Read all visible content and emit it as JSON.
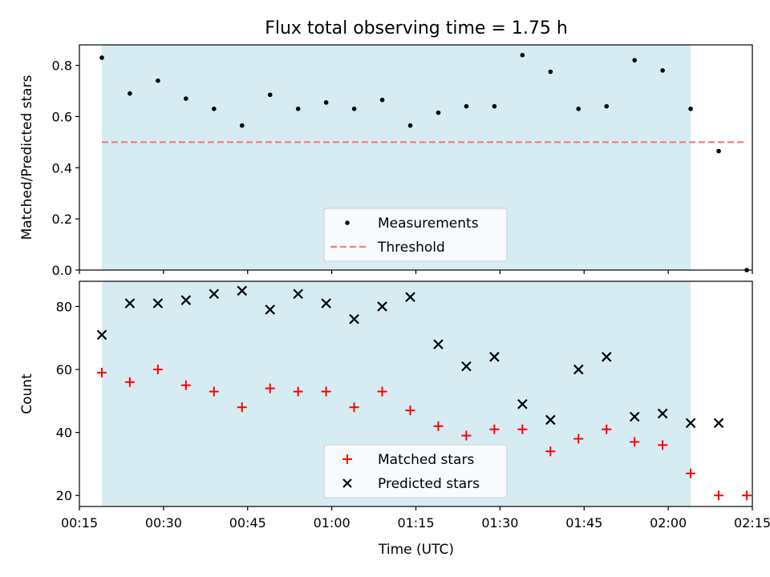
{
  "figure": {
    "title": "Flux total observing time = 1.75 h",
    "xlabel": "Time (UTC)"
  },
  "colors": {
    "shade": "#add8e6",
    "measurement": "#000000",
    "threshold": "#f08080",
    "matched": "#ff0000",
    "predicted": "#000000"
  },
  "chart_data": [
    {
      "type": "scatter",
      "ylabel": "Matched/Predicted stars",
      "ylim": [
        0,
        0.88
      ],
      "yticks": [
        "0.0",
        "0.2",
        "0.4",
        "0.6",
        "0.8"
      ],
      "xlim_minutes": [
        15,
        135
      ],
      "shaded_interval": [
        "00:19",
        "02:04"
      ],
      "x": [
        "00:19",
        "00:24",
        "00:29",
        "00:34",
        "00:39",
        "00:44",
        "00:49",
        "00:54",
        "00:59",
        "01:04",
        "01:09",
        "01:14",
        "01:19",
        "01:24",
        "01:29",
        "01:34",
        "01:39",
        "01:44",
        "01:49",
        "01:54",
        "01:59",
        "02:04",
        "02:09",
        "02:14"
      ],
      "series": [
        {
          "name": "Measurements",
          "marker": "dot",
          "values": [
            0.83,
            0.69,
            0.74,
            0.67,
            0.63,
            0.565,
            0.685,
            0.63,
            0.655,
            0.63,
            0.665,
            0.565,
            0.615,
            0.64,
            0.64,
            0.84,
            0.775,
            0.63,
            0.64,
            0.82,
            0.78,
            0.63,
            0.465,
            0.0
          ]
        },
        {
          "name": "Threshold",
          "marker": "dashed-line",
          "value": 0.5,
          "from": "00:19",
          "to": "02:14"
        }
      ],
      "legend": {
        "position": "lower center",
        "entries": [
          "Measurements",
          "Threshold"
        ]
      }
    },
    {
      "type": "scatter",
      "ylabel": "Count",
      "ylim": [
        16.5,
        88
      ],
      "yticks": [
        "20",
        "40",
        "60",
        "80"
      ],
      "xlim_minutes": [
        15,
        135
      ],
      "shaded_interval": [
        "00:19",
        "02:04"
      ],
      "xticks": [
        "00:15",
        "00:30",
        "00:45",
        "01:00",
        "01:15",
        "01:30",
        "01:45",
        "02:00",
        "02:15"
      ],
      "x": [
        "00:19",
        "00:24",
        "00:29",
        "00:34",
        "00:39",
        "00:44",
        "00:49",
        "00:54",
        "00:59",
        "01:04",
        "01:09",
        "01:14",
        "01:19",
        "01:24",
        "01:29",
        "01:34",
        "01:39",
        "01:44",
        "01:49",
        "01:54",
        "01:59",
        "02:04",
        "02:09",
        "02:14"
      ],
      "series": [
        {
          "name": "Matched stars",
          "marker": "plus",
          "values": [
            59,
            56,
            60,
            55,
            53,
            48,
            54,
            53,
            53,
            48,
            53,
            47,
            42,
            39,
            41,
            41,
            34,
            38,
            41,
            37,
            36,
            27,
            20,
            20
          ]
        },
        {
          "name": "Predicted stars",
          "marker": "x",
          "values": [
            71,
            81,
            81,
            82,
            84,
            85,
            79,
            84,
            81,
            76,
            80,
            83,
            68,
            61,
            64,
            49,
            44,
            60,
            64,
            45,
            46,
            43,
            43,
            null
          ]
        }
      ],
      "legend": {
        "position": "lower center",
        "entries": [
          "Matched stars",
          "Predicted stars"
        ]
      }
    }
  ]
}
